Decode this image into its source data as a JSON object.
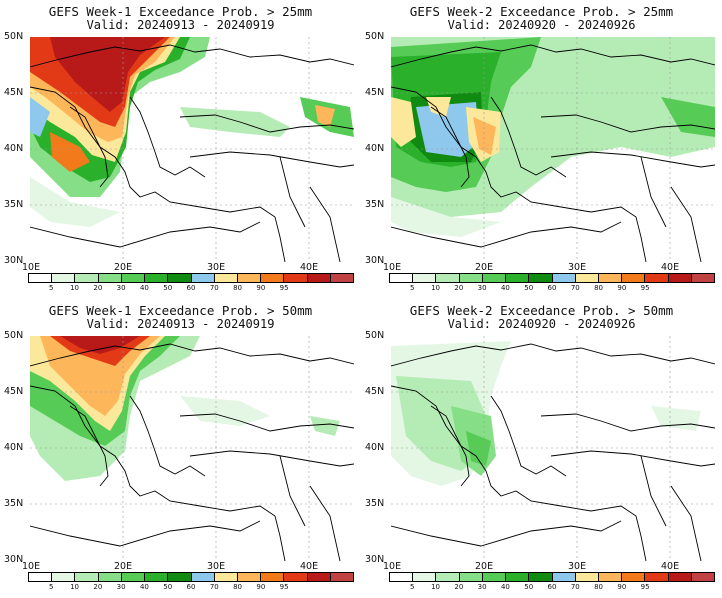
{
  "panels": [
    {
      "title": "GEFS Week-1 Exceedance Prob. > 25mm",
      "valid": "Valid: 20240913 - 20240919"
    },
    {
      "title": "GEFS Week-2 Exceedance Prob. > 25mm",
      "valid": "Valid: 20240920 - 20240926"
    },
    {
      "title": "GEFS Week-1 Exceedance Prob. > 50mm",
      "valid": "Valid: 20240913 - 20240919"
    },
    {
      "title": "GEFS Week-2 Exceedance Prob. > 50mm",
      "valid": "Valid: 20240920 - 20240926"
    }
  ],
  "lat_labels": [
    "50N",
    "45N",
    "40N",
    "35N",
    "30N"
  ],
  "lon_labels": [
    "10E",
    "20E",
    "30E",
    "40E"
  ],
  "colorbar": {
    "labels": [
      "5",
      "10",
      "20",
      "30",
      "40",
      "50",
      "60",
      "70",
      "80",
      "90",
      "95"
    ],
    "colors": [
      "#ffffff",
      "#e4f7e4",
      "#b5ecb5",
      "#86de86",
      "#56cc56",
      "#2bb02b",
      "#118a11",
      "#8ec8ec",
      "#fbe89a",
      "#fdb75a",
      "#f27a1a",
      "#e23a16",
      "#b81a1a",
      "#c04242"
    ]
  },
  "colors": {
    "coast": "#000000",
    "grid": "#9a9a9a"
  }
}
